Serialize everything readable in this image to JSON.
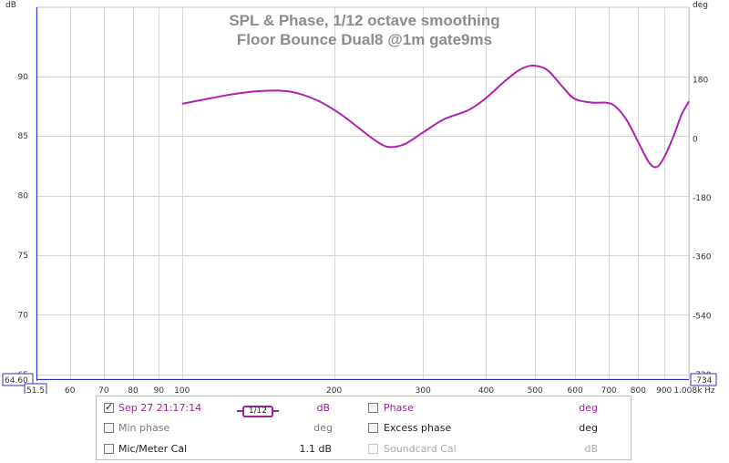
{
  "chart_data": {
    "type": "line",
    "title": "SPL & Phase, 1/12 octave smoothing",
    "subtitle": "Floor Bounce Dual8 @1m gate9ms",
    "ylabel": "dB",
    "y2label": "deg",
    "xunit": "Hz",
    "xscale": "log",
    "xlim": [
      51.5,
      1008
    ],
    "ylim": [
      64.6,
      95.8
    ],
    "y2lim": [
      -734,
      402
    ],
    "grid": true,
    "x_min_readout": "51.5",
    "y_min_readout": "64.60",
    "y2_min_readout": "-734",
    "x_ticks": [
      {
        "v": 60,
        "label": "60"
      },
      {
        "v": 70,
        "label": "70"
      },
      {
        "v": 80,
        "label": "80"
      },
      {
        "v": 90,
        "label": "90"
      },
      {
        "v": 100,
        "label": "100"
      },
      {
        "v": 200,
        "label": "200"
      },
      {
        "v": 300,
        "label": "300"
      },
      {
        "v": 400,
        "label": "400"
      },
      {
        "v": 500,
        "label": "500"
      },
      {
        "v": 600,
        "label": "600"
      },
      {
        "v": 700,
        "label": "700"
      },
      {
        "v": 800,
        "label": "800"
      },
      {
        "v": 900,
        "label": "900"
      },
      {
        "v": 1008,
        "label": "1.008k Hz"
      }
    ],
    "y_ticks": [
      {
        "v": 90,
        "label": "90"
      },
      {
        "v": 85,
        "label": "85"
      },
      {
        "v": 80,
        "label": "80"
      },
      {
        "v": 75,
        "label": "75"
      },
      {
        "v": 70,
        "label": "70"
      },
      {
        "v": 65,
        "label": "65"
      }
    ],
    "y2_ticks": [
      {
        "v": 180,
        "label": "180"
      },
      {
        "v": 0,
        "label": "0"
      },
      {
        "v": -180,
        "label": "-180"
      },
      {
        "v": -360,
        "label": "-360"
      },
      {
        "v": -540,
        "label": "-540"
      },
      {
        "v": -720,
        "label": "-720"
      }
    ],
    "series": [
      {
        "name": "Sep 27 21:17:14",
        "color": "#b020b0",
        "x": [
          100,
          115,
          130,
          148,
          165,
          185,
          205,
          225,
          240,
          255,
          275,
          300,
          330,
          370,
          400,
          430,
          460,
          480,
          500,
          530,
          570,
          600,
          650,
          690,
          720,
          760,
          800,
          840,
          870,
          900,
          940,
          975,
          1008
        ],
        "y": [
          87.7,
          88.2,
          88.6,
          88.8,
          88.7,
          88.0,
          86.9,
          85.6,
          84.7,
          84.1,
          84.3,
          85.3,
          86.4,
          87.2,
          88.2,
          89.4,
          90.4,
          90.8,
          90.9,
          90.5,
          89.0,
          88.1,
          87.8,
          87.8,
          87.5,
          86.3,
          84.5,
          82.8,
          82.4,
          83.2,
          85.0,
          86.8,
          87.9
        ]
      }
    ]
  },
  "legend": {
    "rows": [
      {
        "checked": true,
        "label": "Sep 27 21:17:14",
        "label_color": "#a020a0",
        "smoothing": "1/12",
        "unit": "dB",
        "unit_color": "#a020a0",
        "right_checked": false,
        "right_label": "Phase",
        "right_label_color": "#a020a0",
        "right_unit": "deg",
        "right_unit_color": "#a020a0"
      },
      {
        "checked": false,
        "label": "Min phase",
        "label_color": "#7a7a7a",
        "unit": "deg",
        "unit_color": "#7a7a7a",
        "right_checked": false,
        "right_label": "Excess phase",
        "right_label_color": "#222222",
        "right_unit": "deg",
        "right_unit_color": "#222222"
      },
      {
        "checked": false,
        "label": "Mic/Meter Cal",
        "label_color": "#222222",
        "unit": "1.1 dB",
        "unit_color": "#222222",
        "right_checked": false,
        "right_label": "Soundcard Cal",
        "right_label_color": "#a8a8a8",
        "right_unit": "dB",
        "right_unit_color": "#a8a8a8",
        "right_disabled": true
      }
    ]
  }
}
